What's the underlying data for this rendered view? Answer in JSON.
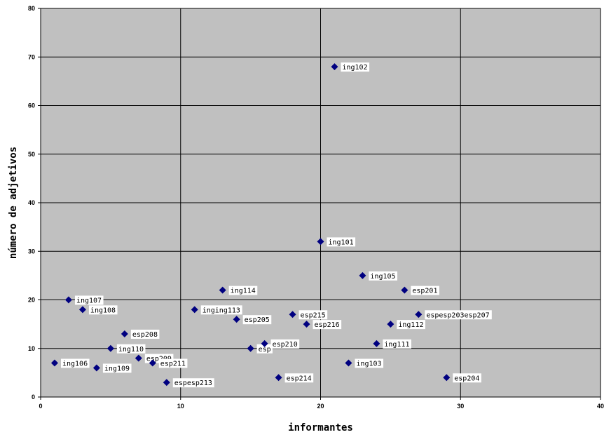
{
  "chart_data": {
    "type": "scatter",
    "title": "",
    "xlabel": "informantes",
    "ylabel": "número de adjetivos",
    "xlim": [
      0,
      40
    ],
    "ylim": [
      0,
      80
    ],
    "xticks": [
      "0",
      "10",
      "20",
      "30",
      "40"
    ],
    "yticks": [
      "0",
      "10",
      "20",
      "30",
      "40",
      "50",
      "60",
      "70",
      "80"
    ],
    "grid": true,
    "legend": "none",
    "colors": {
      "plot_bg": "#c0c0c0",
      "marker": "#000080",
      "grid": "#000000"
    },
    "points": [
      {
        "x": 1,
        "y": 7,
        "label": "ing106"
      },
      {
        "x": 2,
        "y": 20,
        "label": "ing107"
      },
      {
        "x": 3,
        "y": 18,
        "label": "ing108"
      },
      {
        "x": 4,
        "y": 6,
        "label": "ing109"
      },
      {
        "x": 5,
        "y": 10,
        "label": "ing110"
      },
      {
        "x": 6,
        "y": 13,
        "label": "esp208"
      },
      {
        "x": 7,
        "y": 8,
        "label": "esp209"
      },
      {
        "x": 8,
        "y": 7,
        "label": "esp211"
      },
      {
        "x": 9,
        "y": 3,
        "label": "espesp213"
      },
      {
        "x": 11,
        "y": 18,
        "label": "inging113"
      },
      {
        "x": 13,
        "y": 22,
        "label": "ing114"
      },
      {
        "x": 14,
        "y": 16,
        "label": "esp205"
      },
      {
        "x": 15,
        "y": 10,
        "label": "esp"
      },
      {
        "x": 16,
        "y": 11,
        "label": "esp210"
      },
      {
        "x": 17,
        "y": 4,
        "label": "esp214"
      },
      {
        "x": 18,
        "y": 17,
        "label": "esp215"
      },
      {
        "x": 19,
        "y": 15,
        "label": "esp216"
      },
      {
        "x": 20,
        "y": 32,
        "label": "ing101"
      },
      {
        "x": 21,
        "y": 68,
        "label": "ing102"
      },
      {
        "x": 22,
        "y": 7,
        "label": "ing103"
      },
      {
        "x": 23,
        "y": 25,
        "label": "ing105"
      },
      {
        "x": 24,
        "y": 11,
        "label": "ing111"
      },
      {
        "x": 25,
        "y": 15,
        "label": "ing112"
      },
      {
        "x": 26,
        "y": 22,
        "label": "esp201"
      },
      {
        "x": 27,
        "y": 17,
        "label": "espesp203esp207"
      },
      {
        "x": 29,
        "y": 4,
        "label": "esp204"
      }
    ]
  }
}
